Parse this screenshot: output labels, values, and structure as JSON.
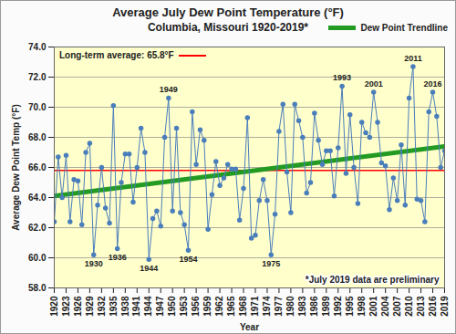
{
  "chart_data": {
    "type": "line",
    "title": "Average July Dew Point Temperature (°F)",
    "subtitle": "Columbia, Missouri 1920-2019*",
    "x_label": "Year",
    "y_label": "Average Dew Point Temp (°F)",
    "x": [
      1920,
      1921,
      1922,
      1923,
      1924,
      1925,
      1926,
      1927,
      1928,
      1929,
      1930,
      1931,
      1932,
      1933,
      1934,
      1935,
      1936,
      1937,
      1938,
      1939,
      1940,
      1941,
      1942,
      1943,
      1944,
      1945,
      1946,
      1947,
      1948,
      1949,
      1950,
      1951,
      1952,
      1953,
      1954,
      1955,
      1956,
      1957,
      1958,
      1959,
      1960,
      1961,
      1962,
      1963,
      1964,
      1965,
      1966,
      1967,
      1968,
      1969,
      1970,
      1971,
      1972,
      1973,
      1974,
      1975,
      1976,
      1977,
      1978,
      1979,
      1980,
      1981,
      1982,
      1983,
      1984,
      1985,
      1986,
      1987,
      1988,
      1989,
      1990,
      1991,
      1992,
      1993,
      1994,
      1995,
      1996,
      1997,
      1998,
      1999,
      2000,
      2001,
      2002,
      2003,
      2004,
      2005,
      2006,
      2007,
      2008,
      2009,
      2010,
      2011,
      2012,
      2013,
      2014,
      2015,
      2016,
      2017,
      2018,
      2019
    ],
    "values": [
      62.4,
      66.7,
      64.0,
      66.8,
      62.4,
      65.2,
      65.1,
      62.2,
      67.0,
      67.6,
      60.2,
      63.5,
      66.0,
      63.3,
      62.3,
      70.1,
      60.6,
      65.0,
      66.9,
      66.9,
      63.7,
      66.0,
      68.6,
      67.0,
      59.9,
      62.6,
      63.1,
      62.1,
      68.0,
      70.6,
      63.1,
      68.6,
      63.0,
      62.2,
      60.5,
      69.7,
      66.2,
      68.5,
      67.8,
      61.9,
      64.2,
      66.4,
      64.8,
      65.3,
      66.2,
      65.9,
      65.9,
      62.5,
      64.6,
      69.3,
      61.3,
      61.5,
      63.8,
      65.2,
      63.8,
      60.2,
      62.9,
      68.4,
      70.2,
      65.7,
      63.0,
      70.2,
      69.1,
      68.0,
      64.3,
      65.0,
      69.6,
      67.8,
      66.2,
      67.1,
      67.1,
      64.1,
      67.3,
      71.4,
      65.6,
      69.5,
      66.0,
      63.6,
      69.0,
      68.3,
      68.0,
      71.0,
      69.0,
      66.3,
      66.1,
      63.2,
      65.3,
      63.8,
      67.5,
      63.5,
      70.6,
      72.7,
      63.9,
      63.8,
      62.4,
      69.7,
      71.0,
      69.4,
      66.0,
      67.1
    ],
    "color": "#4a7ebb",
    "marker": "circle",
    "xlim": [
      1920,
      2019
    ],
    "xticks": [
      1920,
      1923,
      1926,
      1929,
      1932,
      1935,
      1938,
      1941,
      1944,
      1947,
      1950,
      1953,
      1956,
      1959,
      1962,
      1965,
      1968,
      1971,
      1974,
      1977,
      1980,
      1983,
      1986,
      1989,
      1992,
      1995,
      1998,
      2001,
      2004,
      2007,
      2010,
      2013,
      2016,
      2019
    ],
    "ylim": [
      58,
      74
    ],
    "yticks": [
      {
        "value": 58,
        "label": "58.0"
      },
      {
        "value": 60,
        "label": "60.0"
      },
      {
        "value": 62,
        "label": "62.0"
      },
      {
        "value": 64,
        "label": "64.0"
      },
      {
        "value": 66,
        "label": "66.0"
      },
      {
        "value": 68,
        "label": "68.0"
      },
      {
        "value": 70,
        "label": "70.0"
      },
      {
        "value": 72,
        "label": "72.0"
      },
      {
        "value": 74,
        "label": "74.0"
      }
    ],
    "grid": true,
    "legend": "top-right",
    "trendline": {
      "name": "Dew Point Trendline",
      "color": "#239b23",
      "x": [
        1920,
        2019
      ],
      "values": [
        64.1,
        67.4
      ]
    },
    "average": {
      "label": "Long-term average: 65.8°F",
      "value": 65.8,
      "color": "#ff0000"
    },
    "point_labels": [
      1930,
      1936,
      1944,
      1949,
      1954,
      1975,
      1993,
      2001,
      2011,
      2016
    ],
    "note": "*July 2019 data are preliminary"
  }
}
